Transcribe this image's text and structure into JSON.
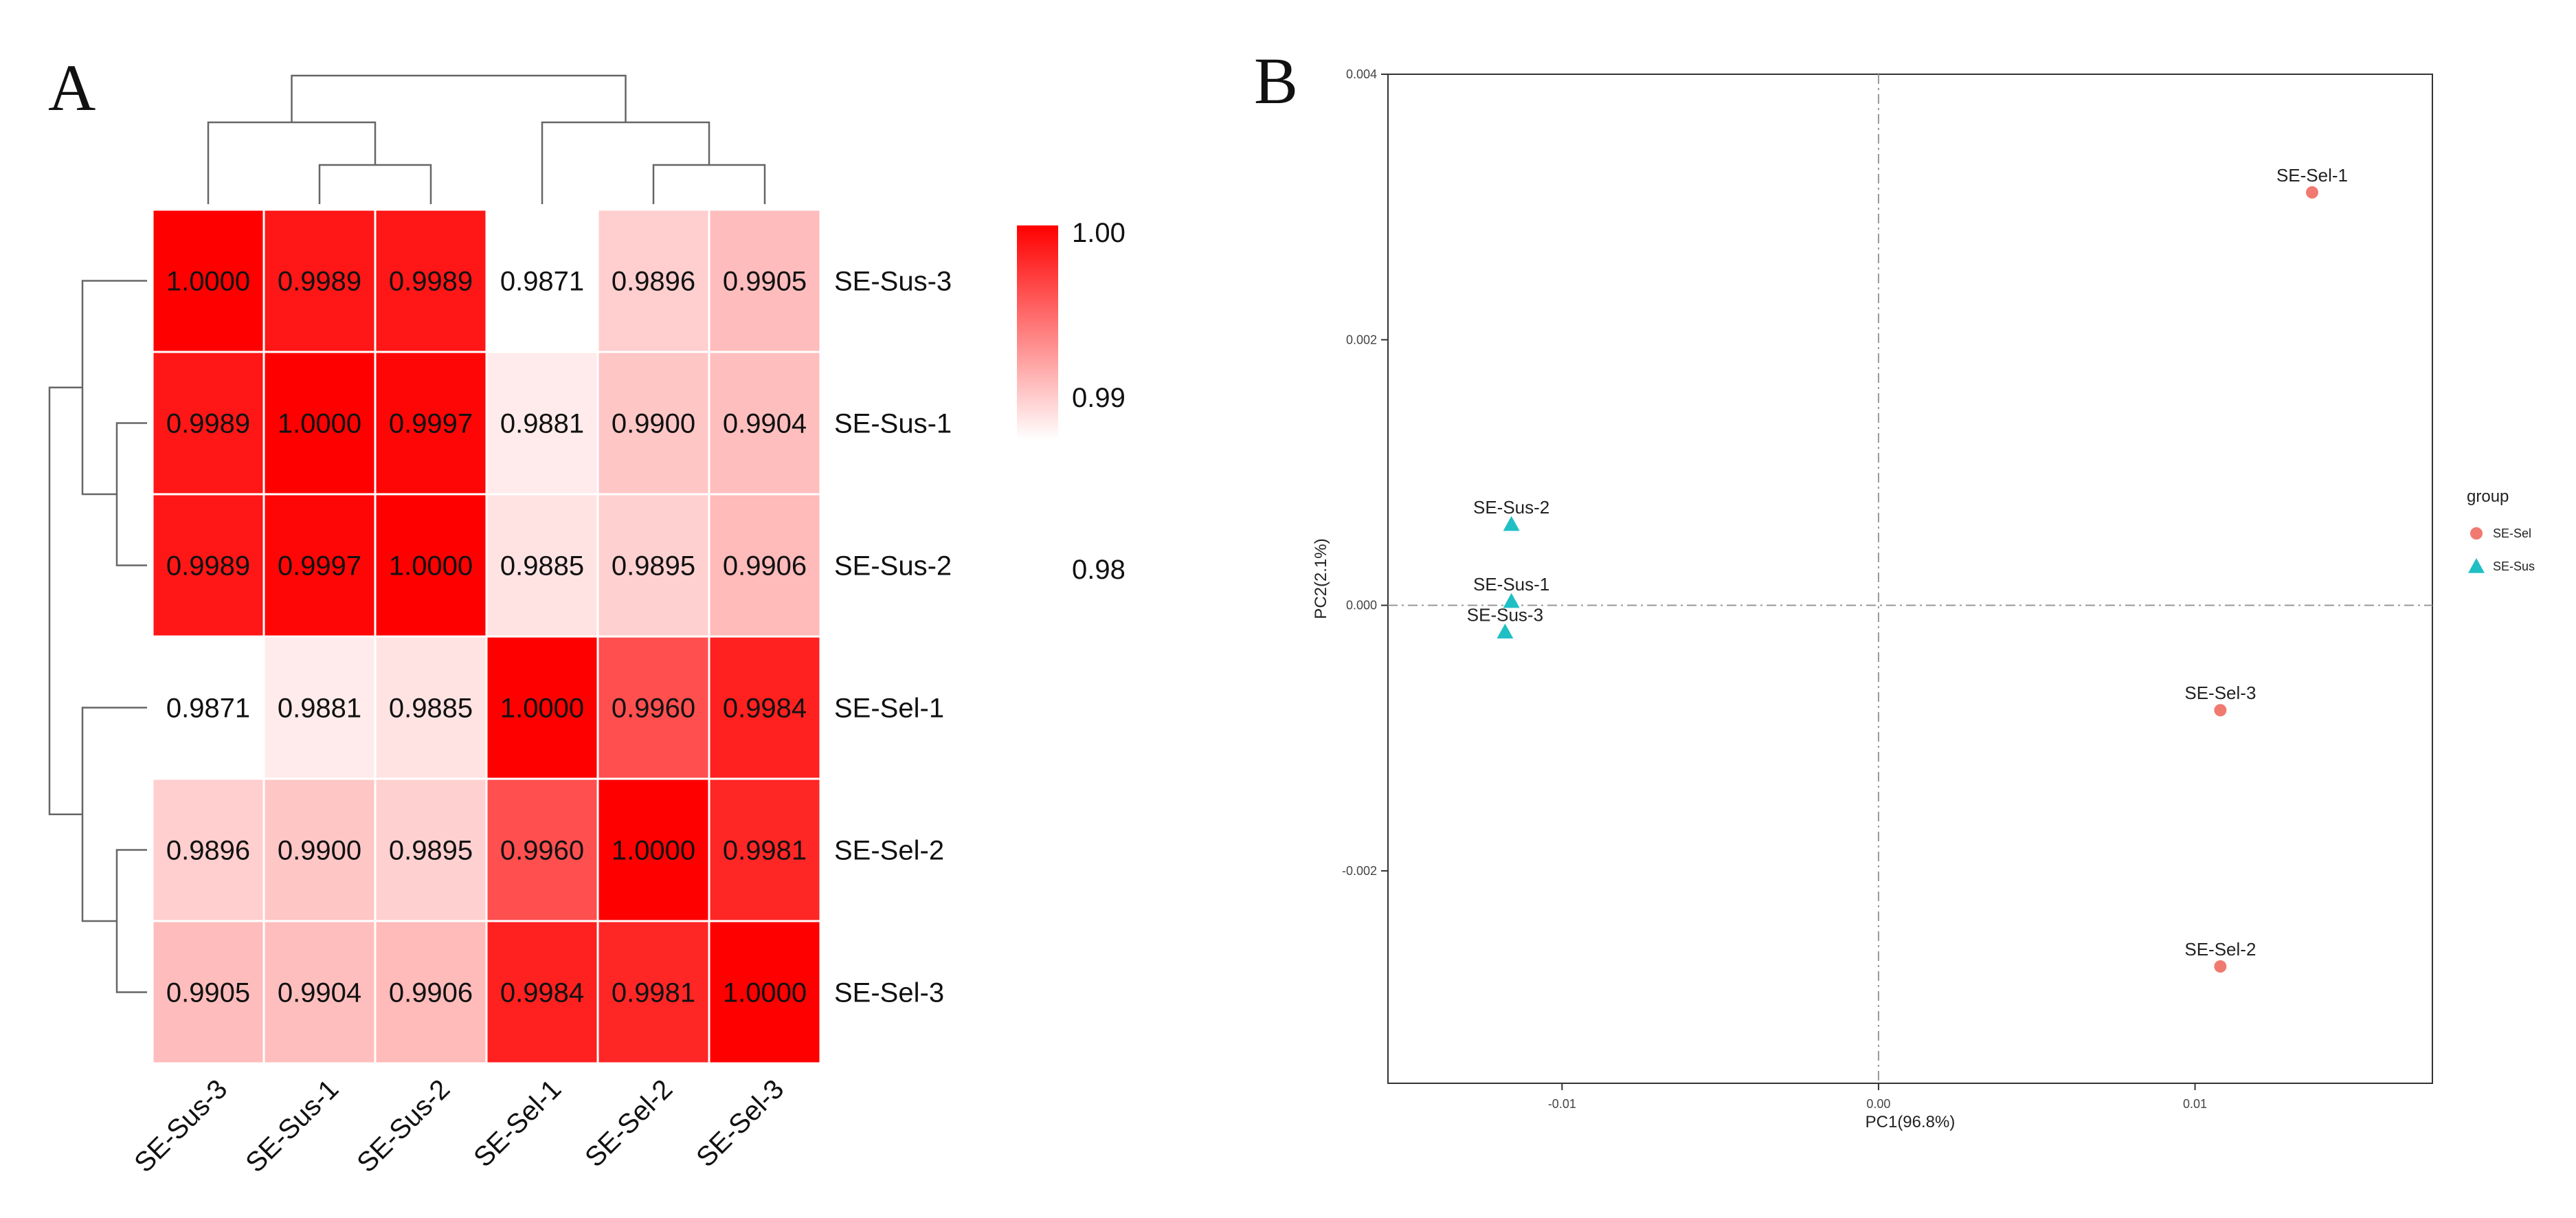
{
  "chart_data": [
    {
      "type": "heatmap",
      "panel_label": "A",
      "rows": [
        "SE-Sus-3",
        "SE-Sus-1",
        "SE-Sus-2",
        "SE-Sel-1",
        "SE-Sel-2",
        "SE-Sel-3"
      ],
      "columns": [
        "SE-Sus-3",
        "SE-Sus-1",
        "SE-Sus-2",
        "SE-Sel-1",
        "SE-Sel-2",
        "SE-Sel-3"
      ],
      "values": [
        [
          1.0,
          0.9989,
          0.9989,
          0.9871,
          0.9896,
          0.9905
        ],
        [
          0.9989,
          1.0,
          0.9997,
          0.9881,
          0.99,
          0.9904
        ],
        [
          0.9989,
          0.9997,
          1.0,
          0.9885,
          0.9895,
          0.9906
        ],
        [
          0.9871,
          0.9881,
          0.9885,
          1.0,
          0.996,
          0.9984
        ],
        [
          0.9896,
          0.99,
          0.9895,
          0.996,
          1.0,
          0.9981
        ],
        [
          0.9905,
          0.9904,
          0.9906,
          0.9984,
          0.9981,
          1.0
        ]
      ],
      "cell_labels": [
        [
          "1.0000",
          "0.9989",
          "0.9989",
          "0.9871",
          "0.9896",
          "0.9905"
        ],
        [
          "0.9989",
          "1.0000",
          "0.9997",
          "0.9881",
          "0.9900",
          "0.9904"
        ],
        [
          "0.9989",
          "0.9997",
          "1.0000",
          "0.9885",
          "0.9895",
          "0.9906"
        ],
        [
          "0.9871",
          "0.9881",
          "0.9885",
          "1.0000",
          "0.9960",
          "0.9984"
        ],
        [
          "0.9896",
          "0.9900",
          "0.9895",
          "0.9960",
          "1.0000",
          "0.9981"
        ],
        [
          "0.9905",
          "0.9904",
          "0.9906",
          "0.9984",
          "0.9981",
          "1.0000"
        ]
      ],
      "color_scale": {
        "min": 0.9871,
        "max": 1.0,
        "low_color": "#ffffff",
        "high_color": "#ff0000",
        "ticks": [
          "1.00",
          "0.99",
          "0.98"
        ],
        "tick_values": [
          1.0,
          0.99,
          0.98
        ],
        "bar_range": [
          0.9871,
          1.0
        ]
      },
      "dendrogram": {
        "clustered": true,
        "sides": [
          "top",
          "left"
        ]
      }
    },
    {
      "type": "scatter",
      "panel_label": "B",
      "xlabel": "PC1(96.8%)",
      "ylabel": "PC2(2.1%)",
      "xlim": [
        -0.0155,
        0.0175
      ],
      "ylim": [
        -0.0036,
        0.004
      ],
      "xticks": [
        -0.01,
        0.0,
        0.01
      ],
      "xtick_labels": [
        "-0.01",
        "0.00",
        "0.01"
      ],
      "yticks": [
        -0.002,
        0.0,
        0.002,
        0.004
      ],
      "ytick_labels": [
        "-0.002",
        "0.000",
        "0.002",
        "0.004"
      ],
      "reference_lines": {
        "x": 0.0,
        "y": 0.0,
        "style": "dash-dot"
      },
      "legend": {
        "title": "group",
        "position": "right"
      },
      "series": [
        {
          "name": "SE-Sel",
          "marker": "circle",
          "color": "#f07a70",
          "points": [
            {
              "label": "SE-Sel-1",
              "x": 0.0137,
              "y": 0.00311
            },
            {
              "label": "SE-Sel-3",
              "x": 0.0108,
              "y": -0.00079
            },
            {
              "label": "SE-Sel-2",
              "x": 0.0108,
              "y": -0.00272
            }
          ]
        },
        {
          "name": "SE-Sus",
          "marker": "triangle",
          "color": "#1fbfc4",
          "points": [
            {
              "label": "SE-Sus-2",
              "x": -0.0116,
              "y": 0.00061
            },
            {
              "label": "SE-Sus-1",
              "x": -0.0116,
              "y": 3e-05
            },
            {
              "label": "SE-Sus-3",
              "x": -0.0118,
              "y": -0.0002
            }
          ]
        }
      ]
    }
  ]
}
